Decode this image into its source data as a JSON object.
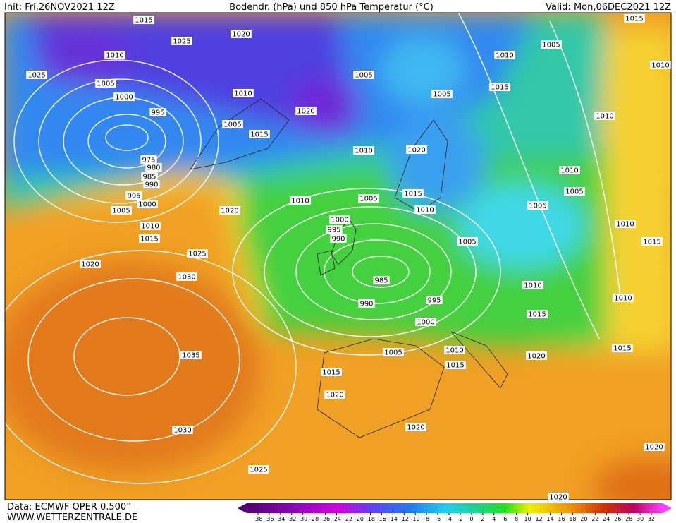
{
  "header": {
    "init": "Init: Fri,26NOV2021 12Z",
    "title": "Bodendr. (hPa) und 850 hPa Temperatur (°C)",
    "valid": "Valid: Mon,06DEC2021 12Z"
  },
  "footer": {
    "data": "Data: ECMWF OPER 0.500°",
    "site": "WWW.WETTERZENTRALE.DE"
  },
  "colorbar_ticks": [
    -38,
    -36,
    -34,
    -32,
    -30,
    -28,
    -26,
    -24,
    -22,
    -20,
    -18,
    -16,
    -14,
    -12,
    -10,
    -8,
    -6,
    -4,
    -2,
    0,
    2,
    4,
    6,
    8,
    10,
    12,
    14,
    16,
    18,
    20,
    22,
    24,
    26,
    28,
    30,
    32
  ],
  "isobar_labels": [
    "1015",
    "1025",
    "1020",
    "1010",
    "1025",
    "1005",
    "1000",
    "995",
    "975",
    "980",
    "985",
    "990",
    "995",
    "1000",
    "1005",
    "1010",
    "1015",
    "1020",
    "1025",
    "1030",
    "1035",
    "1030",
    "1025",
    "1020",
    "1010",
    "1005",
    "1015",
    "1020",
    "1010",
    "1005",
    "1000",
    "995",
    "990",
    "985",
    "990",
    "995",
    "1000",
    "1005",
    "1015",
    "1020",
    "1020",
    "1010",
    "1015",
    "1020",
    "1015",
    "1010",
    "1005",
    "1010",
    "1015",
    "1020",
    "1010",
    "1005",
    "1015",
    "1010",
    "1005",
    "1015",
    "1010",
    "1010",
    "1010",
    "1005",
    "1005",
    "1010",
    "1015",
    "1010",
    "1015",
    "1020",
    "1020",
    "1005"
  ]
}
